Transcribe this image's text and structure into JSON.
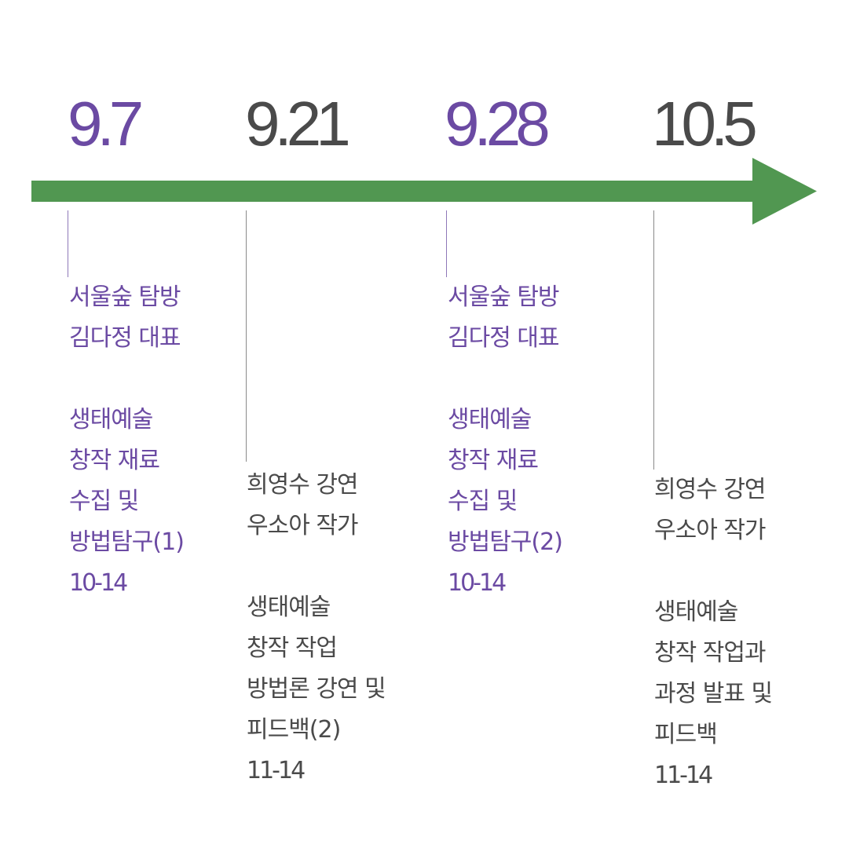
{
  "timeline": {
    "colors": {
      "purple": "#6b4aa3",
      "gray": "#4a4a4a",
      "arrow": "#519751"
    },
    "events": [
      {
        "date": "9.7",
        "lecture": [
          "서울숲 탐방",
          "김다정 대표"
        ],
        "topic": [
          "생태예술",
          "창작 재료",
          "수집 및",
          "방법탐구(1)"
        ],
        "time": "10-14"
      },
      {
        "date": "9.21",
        "lecture": [
          "희영수 강연",
          "우소아 작가"
        ],
        "topic": [
          "생태예술",
          "창작 작업",
          "방법론 강연 및",
          "피드백(2)"
        ],
        "time": "11-14"
      },
      {
        "date": "9.28",
        "lecture": [
          "서울숲 탐방",
          "김다정 대표"
        ],
        "topic": [
          "생태예술",
          "창작 재료",
          "수집 및",
          "방법탐구(2)"
        ],
        "time": "10-14"
      },
      {
        "date": "10.5",
        "lecture": [
          "희영수 강연",
          "우소아 작가"
        ],
        "topic": [
          "생태예술",
          "창작 작업과",
          "과정 발표 및",
          "피드백"
        ],
        "time": "11-14"
      }
    ]
  }
}
